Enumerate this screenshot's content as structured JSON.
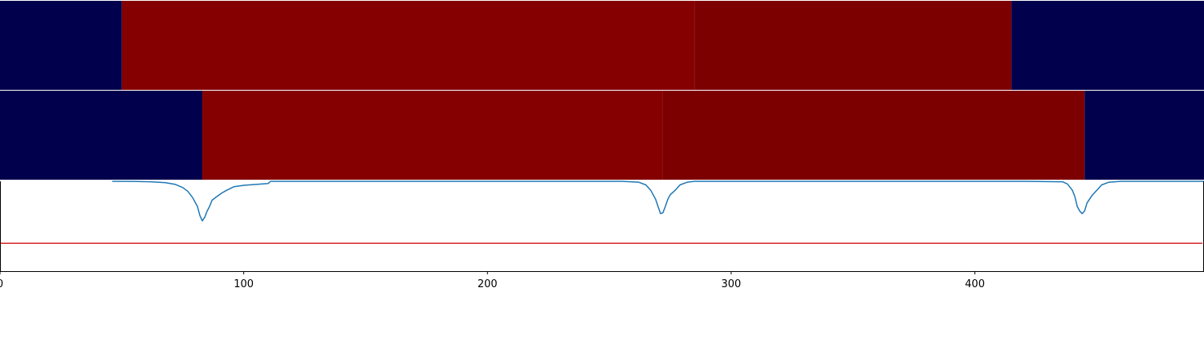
{
  "chart_data": {
    "type": "heatmap",
    "xlim": [
      0,
      494
    ],
    "x_ticks": [
      {
        "value": 0,
        "label": "0"
      },
      {
        "value": 100,
        "label": "100"
      },
      {
        "value": 200,
        "label": "200"
      },
      {
        "value": 300,
        "label": "300"
      },
      {
        "value": 400,
        "label": "400"
      }
    ],
    "colors": {
      "background_band": "#00004c",
      "segment_light": "#850000",
      "segment_dark": "#7d0000",
      "line": "#1f77b4",
      "threshold": "#d62728",
      "axis": "#000000"
    },
    "heat_rows": [
      {
        "segments": [
          {
            "x0": 0,
            "x1": 50,
            "color": "#00004c"
          },
          {
            "x0": 50,
            "x1": 285,
            "color": "#850000"
          },
          {
            "x0": 285,
            "x1": 415,
            "color": "#7d0000"
          },
          {
            "x0": 415,
            "x1": 494,
            "color": "#00004c"
          }
        ]
      },
      {
        "segments": [
          {
            "x0": 0,
            "x1": 83,
            "color": "#00004c"
          },
          {
            "x0": 83,
            "x1": 272,
            "color": "#850000"
          },
          {
            "x0": 272,
            "x1": 445,
            "color": "#7d0000"
          },
          {
            "x0": 445,
            "x1": 494,
            "color": "#00004c"
          }
        ]
      }
    ],
    "line_series": {
      "ylim": [
        0,
        1
      ],
      "points": [
        [
          46,
          1.0
        ],
        [
          55,
          0.999
        ],
        [
          62,
          0.995
        ],
        [
          68,
          0.985
        ],
        [
          72,
          0.965
        ],
        [
          75,
          0.93
        ],
        [
          77,
          0.89
        ],
        [
          79,
          0.82
        ],
        [
          81,
          0.72
        ],
        [
          82,
          0.62
        ],
        [
          83,
          0.56
        ],
        [
          84,
          0.6
        ],
        [
          85,
          0.67
        ],
        [
          86,
          0.72
        ],
        [
          87,
          0.79
        ],
        [
          89,
          0.83
        ],
        [
          91,
          0.87
        ],
        [
          93,
          0.9
        ],
        [
          96,
          0.94
        ],
        [
          100,
          0.955
        ],
        [
          105,
          0.965
        ],
        [
          110,
          0.975
        ],
        [
          111,
          1.0
        ],
        [
          120,
          1.0
        ],
        [
          175,
          1.0
        ],
        [
          255,
          1.0
        ],
        [
          262,
          0.99
        ],
        [
          265,
          0.96
        ],
        [
          267,
          0.9
        ],
        [
          269,
          0.8
        ],
        [
          270,
          0.72
        ],
        [
          271,
          0.64
        ],
        [
          272,
          0.65
        ],
        [
          273,
          0.72
        ],
        [
          274,
          0.8
        ],
        [
          275,
          0.85
        ],
        [
          277,
          0.9
        ],
        [
          279,
          0.96
        ],
        [
          282,
          0.99
        ],
        [
          285,
          1.0
        ],
        [
          300,
          1.0
        ],
        [
          420,
          1.0
        ],
        [
          436,
          0.995
        ],
        [
          438,
          0.97
        ],
        [
          440,
          0.9
        ],
        [
          441,
          0.83
        ],
        [
          442,
          0.72
        ],
        [
          443,
          0.67
        ],
        [
          444,
          0.64
        ],
        [
          445,
          0.67
        ],
        [
          446,
          0.76
        ],
        [
          447,
          0.8
        ],
        [
          448,
          0.84
        ],
        [
          450,
          0.9
        ],
        [
          452,
          0.96
        ],
        [
          455,
          0.99
        ],
        [
          460,
          1.0
        ],
        [
          494,
          1.0
        ]
      ]
    },
    "threshold_line": {
      "y": 0.31
    }
  }
}
